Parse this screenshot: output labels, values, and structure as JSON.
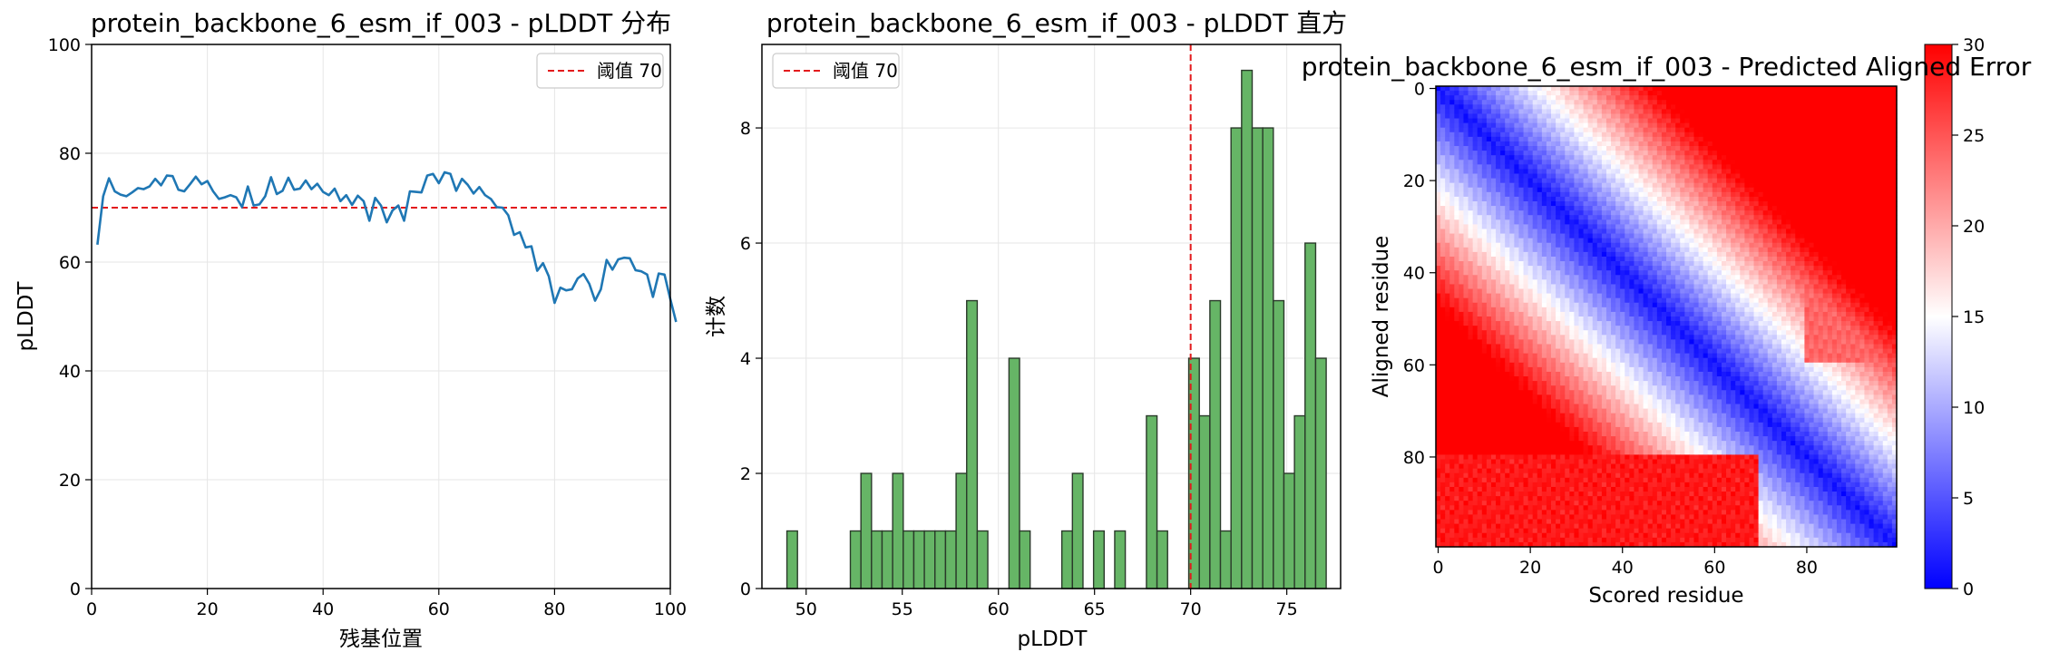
{
  "chart_data": [
    {
      "type": "line",
      "title": "protein_backbone_6_esm_if_003 - pLDDT 分布",
      "xlabel": "残基位置",
      "ylabel": "pLDDT",
      "xlim": [
        0,
        100
      ],
      "ylim": [
        0,
        100
      ],
      "xticks": [
        0,
        20,
        40,
        60,
        80,
        100
      ],
      "yticks": [
        0,
        20,
        40,
        60,
        80,
        100
      ],
      "grid": true,
      "legend": "top-right",
      "series": [
        {
          "values": [
            63.2,
            72.1,
            75.4,
            73.0,
            72.4,
            72.1,
            72.8,
            73.6,
            73.4,
            73.9,
            75.3,
            74.1,
            75.9,
            75.8,
            73.3,
            73.0,
            74.3,
            75.7,
            74.3,
            74.9,
            73.0,
            71.6,
            71.9,
            72.3,
            71.9,
            70.1,
            73.9,
            70.4,
            70.6,
            72.1,
            75.6,
            72.5,
            73.1,
            75.5,
            73.3,
            73.5,
            75.0,
            73.4,
            74.4,
            72.9,
            72.3,
            73.5,
            71.2,
            72.3,
            70.5,
            72.2,
            71.2,
            67.6,
            71.8,
            70.4,
            67.3,
            69.5,
            70.4,
            67.6,
            73.0,
            72.9,
            72.8,
            75.9,
            76.2,
            74.5,
            76.5,
            76.2,
            73.1,
            75.3,
            74.2,
            72.6,
            73.8,
            72.3,
            71.6,
            70.1,
            70.0,
            68.6,
            65.0,
            65.5,
            62.7,
            62.9,
            58.4,
            59.8,
            57.4,
            52.5,
            55.3,
            54.8,
            55.0,
            57.0,
            57.8,
            56.0,
            52.9,
            55.0,
            60.4,
            58.6,
            60.5,
            60.8,
            60.7,
            58.5,
            58.3,
            57.7,
            53.6,
            57.9,
            57.7,
            53.2,
            49.0
          ]
        }
      ],
      "threshold": {
        "value": 70,
        "label": "阈值 70",
        "color": "#e31a1c"
      },
      "line_color": "#1f77b4"
    },
    {
      "type": "bar",
      "title": "protein_backbone_6_esm_if_003 - pLDDT 直方",
      "xlabel": "pLDDT",
      "ylabel": "计数",
      "xlim": [
        47.7,
        77.8
      ],
      "ylim": [
        0,
        9.45
      ],
      "xticks": [
        50,
        55,
        60,
        65,
        70,
        75
      ],
      "yticks": [
        0,
        2,
        4,
        6,
        8
      ],
      "grid": true,
      "legend": "top-left",
      "bin_start": 49.0,
      "bin_width": 0.55,
      "counts": [
        1,
        0,
        0,
        0,
        0,
        0,
        1,
        2,
        1,
        1,
        2,
        1,
        1,
        1,
        1,
        1,
        2,
        5,
        1,
        0,
        0,
        4,
        1,
        0,
        0,
        0,
        1,
        2,
        0,
        1,
        0,
        1,
        0,
        0,
        3,
        1,
        0,
        0,
        4,
        3,
        5,
        1,
        8,
        9,
        8,
        8,
        5,
        2,
        3,
        6,
        4
      ],
      "bar_color": "#66b566",
      "edge_color": "#2a3a2a",
      "threshold": {
        "value": 70,
        "label": "阈值 70",
        "color": "#e31a1c"
      }
    },
    {
      "type": "heatmap",
      "title": "protein_backbone_6_esm_if_003 - Predicted Aligned Error",
      "xlabel": "Scored residue",
      "ylabel": "Aligned residue",
      "size": 100,
      "xticks": [
        0,
        20,
        40,
        60,
        80
      ],
      "yticks": [
        0,
        20,
        40,
        60,
        80
      ],
      "colormap": "bwr",
      "vmin": 0,
      "vmax": 30,
      "colorbar_ticks": [
        0,
        5,
        10,
        15,
        20,
        25,
        30
      ]
    }
  ]
}
